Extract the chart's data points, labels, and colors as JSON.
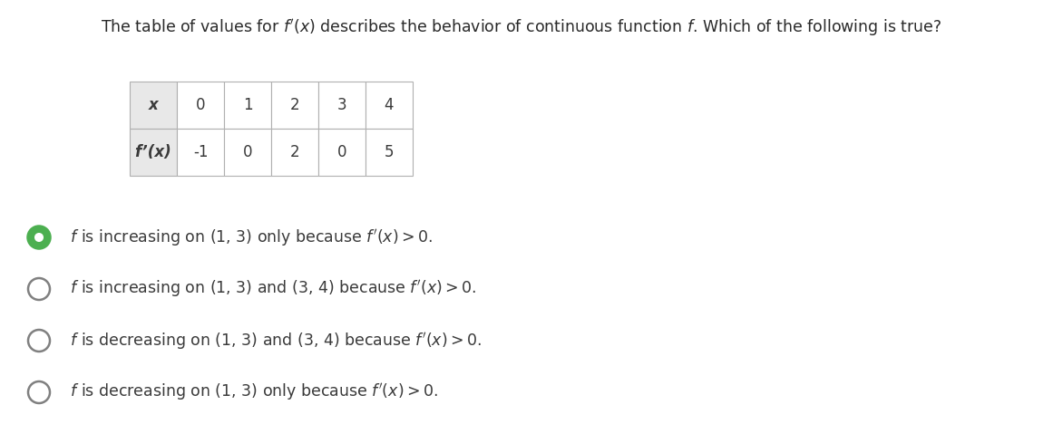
{
  "title": "The table of values for $f'(x)$ describes the behavior of continuous function $f$. Which of the following is true?",
  "x_row": [
    "x",
    "0",
    "1",
    "2",
    "3",
    "4"
  ],
  "fx_row": [
    "f’(x)",
    "-1",
    "0",
    "2",
    "0",
    "5"
  ],
  "options": [
    " $f$ is increasing on (1, 3) only because $f'(x) > 0$.",
    " $f$ is increasing on (1, 3) and (3, 4) because $f'(x) > 0$.",
    " $f$ is decreasing on (1, 3) and (3, 4) because $f'(x) > 0$.",
    " $f$ is decreasing on (1, 3) only because $f'(x) > 0$."
  ],
  "selected": 0,
  "bg_color": "#ffffff",
  "table_header_bg": "#e8e8e8",
  "table_cell_bg": "#ffffff",
  "table_border_color": "#b0b0b0",
  "selected_fill_color": "#4CAF50",
  "unselected_color": "#808080",
  "text_color": "#3a3a3a",
  "title_color": "#2a2a2a"
}
